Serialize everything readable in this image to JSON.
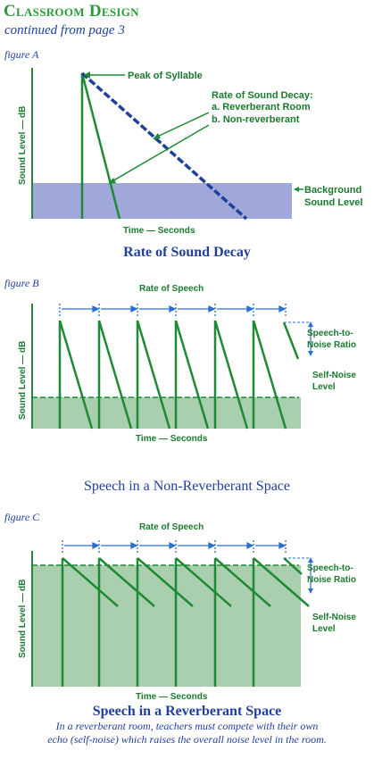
{
  "header": {
    "title": "Classroom Design",
    "subtitle": "continued from page 3"
  },
  "figure_a": {
    "label": "figure A",
    "caption": "Rate of Sound Decay",
    "peak_label": "Peak of Syllable",
    "decay_title": "Rate of Sound Decay:",
    "decay_a": "a. Reverberant Room",
    "decay_b": "b. Non-reverberant",
    "y_axis": "Sound Level — dB",
    "x_axis": "Time — Seconds",
    "bg_label_1": "Background",
    "bg_label_2": "Sound Level"
  },
  "figure_b": {
    "label": "figure B",
    "caption": "Speech in a Non-Reverberant Space",
    "rate_label": "Rate of Speech",
    "snr_label_1": "Speech-to-",
    "snr_label_2": "Noise Ratio",
    "noise_label_1": "Self-Noise",
    "noise_label_2": "Level",
    "y_axis": "Sound Level — dB",
    "x_axis": "Time — Seconds"
  },
  "figure_c": {
    "label": "figure C",
    "caption": "Speech in a Reverberant Space",
    "rate_label": "Rate of Speech",
    "snr_label_1": "Speech-to-",
    "snr_label_2": "Noise Ratio",
    "noise_label_1": "Self-Noise",
    "noise_label_2": "Level",
    "y_axis": "Sound Level — dB",
    "x_axis": "Time — Seconds"
  },
  "footnote": {
    "line1": "In a reverberant room, teachers must compete with their own",
    "line2": "echo (self-noise) which raises the overall noise level in the room."
  },
  "colors": {
    "green": "#1f8a35",
    "blue": "#1f3f9a",
    "arrow_blue": "#2a6fd0",
    "bg_band": "#9fa8d8",
    "noise_fill": "#a9cfae"
  }
}
